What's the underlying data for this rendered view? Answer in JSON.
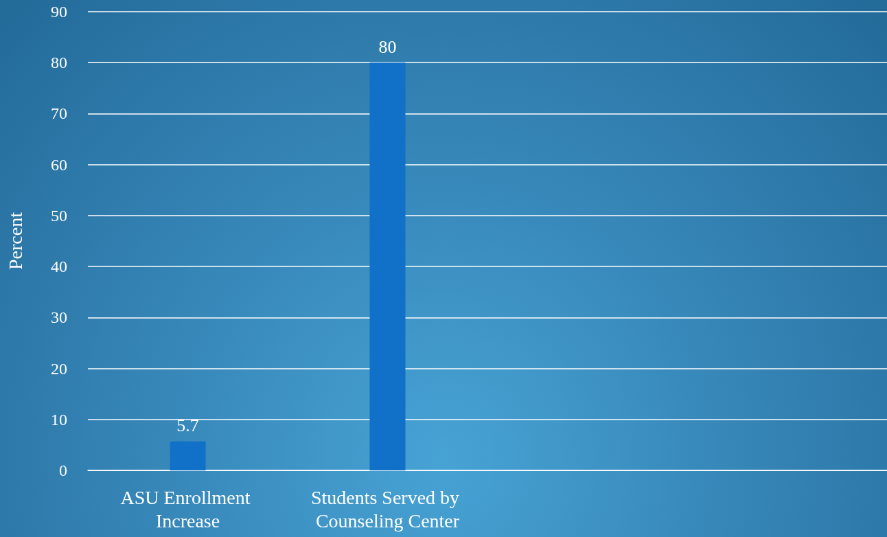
{
  "chart_data": {
    "type": "bar",
    "categories": [
      "ASU Enrollment Increase",
      "Students Served by Counseling Center",
      null,
      null
    ],
    "values": [
      5.7,
      80,
      null,
      null
    ],
    "color": "#1170c8",
    "ylabel": "Percent",
    "ylim": [
      0,
      90
    ],
    "yticks": [
      0,
      10,
      20,
      30,
      40,
      50,
      60,
      70,
      80,
      90
    ],
    "grid": "y",
    "data_labels": true
  }
}
